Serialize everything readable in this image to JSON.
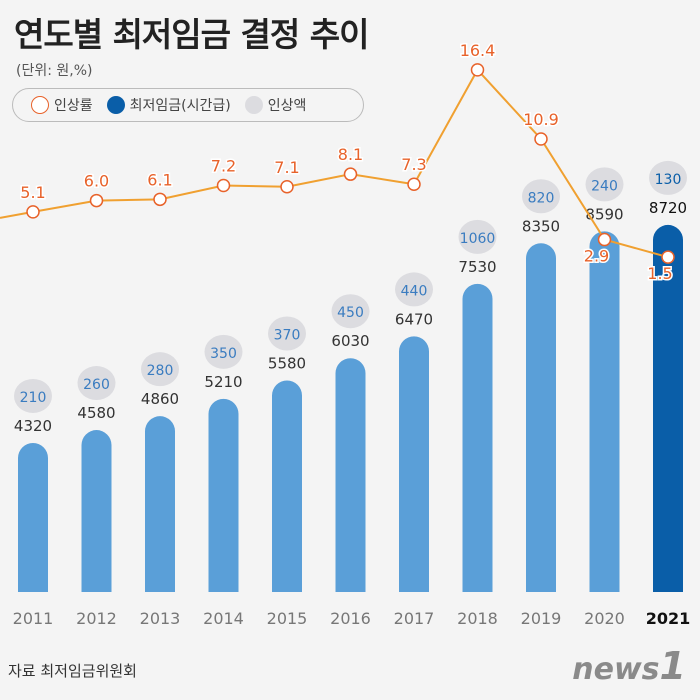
{
  "title": "연도별 최저임금 결정 추이",
  "unit": "(단위: 원,%)",
  "legend": {
    "rate": "인상률",
    "wage": "최저임금(시간급)",
    "increase": "인상액"
  },
  "source": "자료 최저임금위원회",
  "logo": "news1",
  "colors": {
    "bar": "#5a9fd8",
    "bar_highlight": "#0a5ea8",
    "line": "#f0a030",
    "rate_label": "#e8622a",
    "bubble": "#dcdce0"
  },
  "chart_data": {
    "type": "bar",
    "categories": [
      "2011",
      "2012",
      "2013",
      "2014",
      "2015",
      "2016",
      "2017",
      "2018",
      "2019",
      "2020",
      "2021"
    ],
    "series": [
      {
        "name": "최저임금(시간급)",
        "type": "bar",
        "values": [
          4320,
          4580,
          4860,
          5210,
          5580,
          6030,
          6470,
          7530,
          8350,
          8590,
          8720
        ]
      },
      {
        "name": "인상액",
        "type": "bubble-label",
        "values": [
          210,
          260,
          280,
          350,
          370,
          450,
          440,
          1060,
          820,
          240,
          130
        ]
      },
      {
        "name": "인상률",
        "type": "line",
        "values": [
          5.1,
          6.0,
          6.1,
          7.2,
          7.1,
          8.1,
          7.3,
          16.4,
          10.9,
          2.9,
          1.5
        ]
      }
    ],
    "highlight_category": "2021",
    "grid": false,
    "legend_position": "top-left"
  }
}
